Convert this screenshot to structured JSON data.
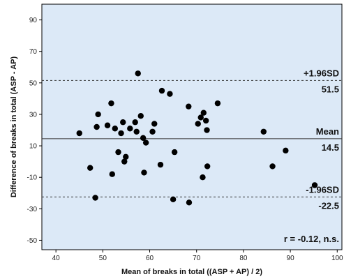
{
  "chart_data": {
    "type": "scatter",
    "xlabel": "Mean of breaks in total ((ASP + AP) / 2)",
    "ylabel": "Difference of breaks in total (ASP - AP)",
    "xlim": [
      37,
      101
    ],
    "ylim": [
      -56,
      100
    ],
    "x_ticks": [
      "40",
      "50",
      "60",
      "70",
      "80",
      "90",
      "100"
    ],
    "y_ticks": [
      "-50",
      "-30",
      "-10",
      "10",
      "30",
      "50",
      "70",
      "90"
    ],
    "grid": false,
    "background_color": "#dce9f7",
    "point_color": "#000000",
    "reference_lines": [
      {
        "value": 51.5,
        "style": "dashed",
        "label": "+1.96SD",
        "value_label": "51.5"
      },
      {
        "value": 14.5,
        "style": "solid",
        "label": "Mean",
        "value_label": "14.5"
      },
      {
        "value": -22.5,
        "style": "dashed",
        "label": "-1.96SD",
        "value_label": "-22.5"
      }
    ],
    "annotation": "r = -0.12, n.s.",
    "points": [
      {
        "x": 45,
        "y": 18
      },
      {
        "x": 47.3,
        "y": -4
      },
      {
        "x": 48.4,
        "y": -23
      },
      {
        "x": 48.7,
        "y": 22
      },
      {
        "x": 49,
        "y": 30
      },
      {
        "x": 51,
        "y": 23
      },
      {
        "x": 51.8,
        "y": 37
      },
      {
        "x": 52,
        "y": -8
      },
      {
        "x": 52.6,
        "y": 21
      },
      {
        "x": 53.3,
        "y": 6
      },
      {
        "x": 53.9,
        "y": 18
      },
      {
        "x": 54.3,
        "y": 25
      },
      {
        "x": 54.6,
        "y": 0
      },
      {
        "x": 54.9,
        "y": 3
      },
      {
        "x": 55.8,
        "y": 21
      },
      {
        "x": 56.9,
        "y": 25
      },
      {
        "x": 57.2,
        "y": 19
      },
      {
        "x": 57.5,
        "y": 56
      },
      {
        "x": 58.1,
        "y": 29
      },
      {
        "x": 58.6,
        "y": 15
      },
      {
        "x": 58.8,
        "y": -7
      },
      {
        "x": 59.2,
        "y": 12
      },
      {
        "x": 60.6,
        "y": 19
      },
      {
        "x": 61,
        "y": 24
      },
      {
        "x": 62.3,
        "y": -2
      },
      {
        "x": 62.6,
        "y": 45
      },
      {
        "x": 64.3,
        "y": 43
      },
      {
        "x": 65,
        "y": -24
      },
      {
        "x": 65.3,
        "y": 6
      },
      {
        "x": 68.3,
        "y": 35
      },
      {
        "x": 68.4,
        "y": -26
      },
      {
        "x": 70.3,
        "y": 24
      },
      {
        "x": 70.9,
        "y": 28
      },
      {
        "x": 71.3,
        "y": -10
      },
      {
        "x": 71.5,
        "y": 31
      },
      {
        "x": 72,
        "y": 26
      },
      {
        "x": 72.2,
        "y": 20
      },
      {
        "x": 72.3,
        "y": -3
      },
      {
        "x": 74.5,
        "y": 37
      },
      {
        "x": 84.3,
        "y": 19
      },
      {
        "x": 86.2,
        "y": -3
      },
      {
        "x": 89,
        "y": 7
      },
      {
        "x": 95.2,
        "y": -15
      }
    ]
  }
}
